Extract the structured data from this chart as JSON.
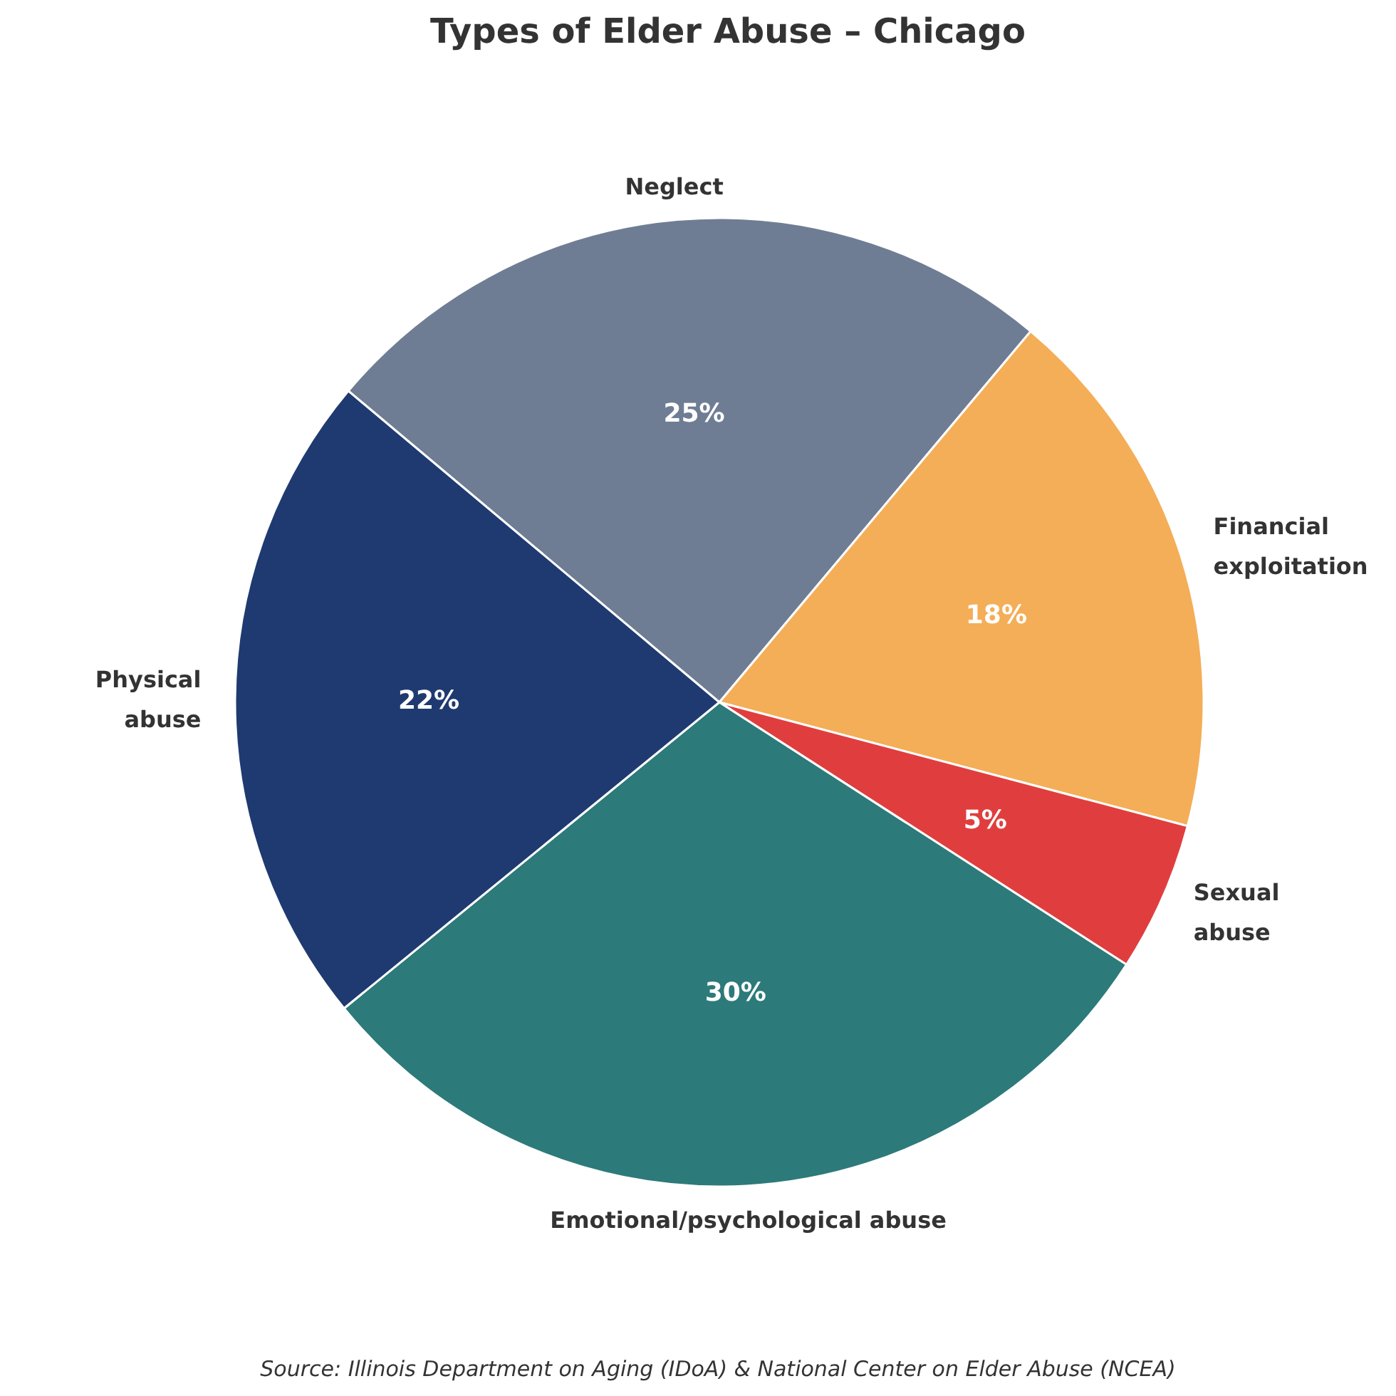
{
  "chart_data": {
    "type": "pie",
    "title": "Types of Elder Abuse – Chicago",
    "categories": [
      "Neglect",
      "Financial exploitation",
      "Sexual abuse",
      "Emotional/psychological abuse",
      "Physical abuse"
    ],
    "values": [
      25,
      18,
      5,
      30,
      22
    ],
    "colors": [
      "#6f7d94",
      "#f4ae57",
      "#e03e3e",
      "#2d7a7a",
      "#1f3a70"
    ],
    "value_labels": [
      "25%",
      "18%",
      "5%",
      "30%",
      "22%"
    ],
    "annotations": [
      "Source: Illinois Department on Aging (IDoA) & National Center on Elder Abuse (NCEA)"
    ]
  }
}
